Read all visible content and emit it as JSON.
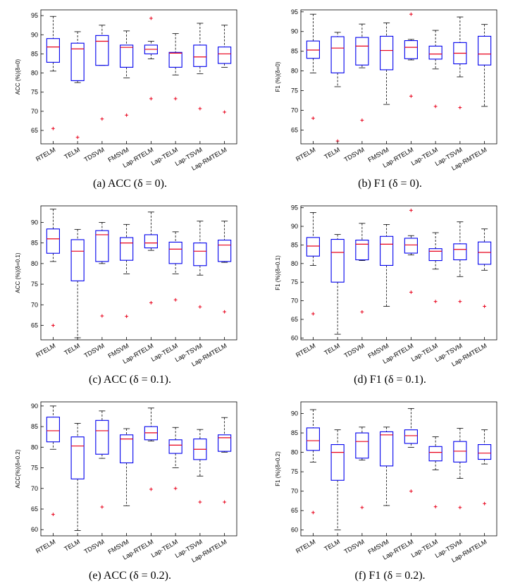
{
  "chart_data": [
    {
      "panel": "a",
      "caption": "(a) ACC (δ = 0).",
      "type": "box",
      "ylabel": "ACC (%)(δ=0)",
      "ylim": [
        61.5,
        96.5
      ],
      "yticks": [
        65,
        70,
        75,
        80,
        85,
        90,
        95
      ],
      "categories": [
        "RTELM",
        "TELM",
        "TDSVM",
        "FMSVM",
        "Lap-RTELM",
        "Lap-TELM",
        "Lap-TSVM",
        "Lap-RMTELM"
      ],
      "boxes": [
        {
          "min": 80.5,
          "q1": 82.8,
          "median": 86.8,
          "q3": 89.0,
          "max": 94.8,
          "outliers": [
            65.5
          ]
        },
        {
          "min": 77.5,
          "q1": 78.0,
          "median": 86.3,
          "q3": 87.8,
          "max": 90.8,
          "outliers": [
            63.2
          ]
        },
        {
          "min": 82.0,
          "q1": 82.0,
          "median": 88.3,
          "q3": 89.8,
          "max": 92.5,
          "outliers": [
            68.0
          ]
        },
        {
          "min": 78.7,
          "q1": 81.5,
          "median": 86.7,
          "q3": 87.3,
          "max": 91.0,
          "outliers": [
            69.0
          ]
        },
        {
          "min": 83.7,
          "q1": 85.0,
          "median": 86.2,
          "q3": 87.3,
          "max": 88.3,
          "outliers": [
            94.3,
            73.3
          ]
        },
        {
          "min": 79.5,
          "q1": 81.5,
          "median": 85.2,
          "q3": 85.4,
          "max": 90.3,
          "outliers": [
            73.3
          ]
        },
        {
          "min": 79.8,
          "q1": 81.7,
          "median": 84.2,
          "q3": 87.3,
          "max": 93.0,
          "outliers": [
            70.7
          ]
        },
        {
          "min": 81.5,
          "q1": 82.5,
          "median": 85.0,
          "q3": 86.8,
          "max": 92.5,
          "outliers": [
            69.8
          ]
        }
      ]
    },
    {
      "panel": "b",
      "caption": "(b) F1 (δ = 0).",
      "type": "box",
      "ylabel": "F1 (%)(δ=0)",
      "ylim": [
        61.5,
        95.5
      ],
      "yticks": [
        65,
        70,
        75,
        80,
        85,
        90,
        95
      ],
      "categories": [
        "RTELM",
        "TELM",
        "TDSVM",
        "FMSVM",
        "Lap-RTELM",
        "Lap-TELM",
        "Lap-TSVM",
        "Lap-RMTELM"
      ],
      "boxes": [
        {
          "min": 79.5,
          "q1": 83.2,
          "median": 85.3,
          "q3": 87.6,
          "max": 94.4,
          "outliers": [
            68.0
          ]
        },
        {
          "min": 76.0,
          "q1": 79.5,
          "median": 85.8,
          "q3": 88.7,
          "max": 89.8,
          "outliers": [
            62.2
          ]
        },
        {
          "min": 80.8,
          "q1": 81.5,
          "median": 86.3,
          "q3": 88.5,
          "max": 91.9,
          "outliers": [
            67.5
          ]
        },
        {
          "min": 71.5,
          "q1": 80.3,
          "median": 85.2,
          "q3": 88.8,
          "max": 92.2,
          "outliers": []
        },
        {
          "min": 82.8,
          "q1": 83.1,
          "median": 86.0,
          "q3": 87.7,
          "max": 88.0,
          "outliers": [
            94.4,
            73.6
          ]
        },
        {
          "min": 80.5,
          "q1": 83.0,
          "median": 84.3,
          "q3": 86.3,
          "max": 90.3,
          "outliers": [
            71.0
          ]
        },
        {
          "min": 78.5,
          "q1": 81.8,
          "median": 84.5,
          "q3": 87.2,
          "max": 93.7,
          "outliers": [
            70.7
          ]
        },
        {
          "min": 71.0,
          "q1": 81.5,
          "median": 84.3,
          "q3": 88.8,
          "max": 91.8,
          "outliers": []
        }
      ]
    },
    {
      "panel": "c",
      "caption": "(c) ACC (δ = 0.1).",
      "type": "box",
      "ylabel": "ACC (%)(δ=0.1)",
      "ylim": [
        61.5,
        94.0
      ],
      "yticks": [
        65,
        70,
        75,
        80,
        85,
        90
      ],
      "categories": [
        "RTELM",
        "TELM",
        "TDSVM",
        "FMSVM",
        "Lap-RTELM",
        "Lap-TELM",
        "Lap-TSVM",
        "Lap-RMTELM"
      ],
      "boxes": [
        {
          "min": 80.5,
          "q1": 82.5,
          "median": 86.0,
          "q3": 88.4,
          "max": 93.2,
          "outliers": [
            65.0
          ]
        },
        {
          "min": 62.0,
          "q1": 75.8,
          "median": 83.0,
          "q3": 85.8,
          "max": 88.3,
          "outliers": []
        },
        {
          "min": 80.0,
          "q1": 80.5,
          "median": 87.0,
          "q3": 88.0,
          "max": 90.0,
          "outliers": [
            67.3
          ]
        },
        {
          "min": 77.5,
          "q1": 80.8,
          "median": 85.0,
          "q3": 86.3,
          "max": 89.5,
          "outliers": [
            67.2
          ]
        },
        {
          "min": 83.2,
          "q1": 83.8,
          "median": 85.0,
          "q3": 87.0,
          "max": 92.5,
          "outliers": [
            70.5
          ]
        },
        {
          "min": 77.5,
          "q1": 80.0,
          "median": 83.5,
          "q3": 85.2,
          "max": 87.7,
          "outliers": [
            71.2
          ]
        },
        {
          "min": 77.2,
          "q1": 79.5,
          "median": 83.0,
          "q3": 85.0,
          "max": 90.3,
          "outliers": [
            69.5
          ]
        },
        {
          "min": 80.3,
          "q1": 80.5,
          "median": 84.5,
          "q3": 85.7,
          "max": 90.3,
          "outliers": [
            68.3
          ]
        }
      ]
    },
    {
      "panel": "d",
      "caption": "(d) F1 (δ = 0.1).",
      "type": "box",
      "ylabel": "F1 (%)(δ=0.1)",
      "ylim": [
        59.5,
        95.5
      ],
      "yticks": [
        60,
        65,
        70,
        75,
        80,
        85,
        90,
        95
      ],
      "categories": [
        "RTELM",
        "TELM",
        "TDSVM",
        "FMSVM",
        "Lap-RTELM",
        "Lap-TELM",
        "Lap-TSVM",
        "Lap-RMTELM"
      ],
      "boxes": [
        {
          "min": 79.5,
          "q1": 82.0,
          "median": 84.7,
          "q3": 87.0,
          "max": 93.7,
          "outliers": [
            66.5
          ]
        },
        {
          "min": 61.0,
          "q1": 75.0,
          "median": 83.0,
          "q3": 86.5,
          "max": 87.8,
          "outliers": []
        },
        {
          "min": 80.8,
          "q1": 81.0,
          "median": 85.2,
          "q3": 86.3,
          "max": 90.8,
          "outliers": [
            67.0
          ]
        },
        {
          "min": 68.5,
          "q1": 79.5,
          "median": 85.2,
          "q3": 87.3,
          "max": 90.5,
          "outliers": []
        },
        {
          "min": 82.3,
          "q1": 82.8,
          "median": 85.0,
          "q3": 86.8,
          "max": 87.5,
          "outliers": [
            94.3,
            72.3
          ]
        },
        {
          "min": 78.5,
          "q1": 80.8,
          "median": 83.3,
          "q3": 84.0,
          "max": 88.3,
          "outliers": [
            69.8
          ]
        },
        {
          "min": 76.5,
          "q1": 81.0,
          "median": 83.8,
          "q3": 85.3,
          "max": 91.2,
          "outliers": [
            69.8
          ]
        },
        {
          "min": 78.2,
          "q1": 79.8,
          "median": 83.0,
          "q3": 85.8,
          "max": 89.3,
          "outliers": [
            68.5
          ]
        }
      ]
    },
    {
      "panel": "e",
      "caption": "(e) ACC (δ = 0.2).",
      "type": "box",
      "ylabel": "ACC(%)(δ=0.2)",
      "ylim": [
        58.5,
        91.0
      ],
      "yticks": [
        60,
        65,
        70,
        75,
        80,
        85,
        90
      ],
      "categories": [
        "RTELM",
        "TELM",
        "TDSVM",
        "FMSVM",
        "Lap-RTELM",
        "Lap-TELM",
        "Lap-TSVM",
        "Lap-RMTELM"
      ],
      "boxes": [
        {
          "min": 79.5,
          "q1": 81.3,
          "median": 84.0,
          "q3": 87.3,
          "max": 90.0,
          "outliers": [
            63.7
          ]
        },
        {
          "min": 59.8,
          "q1": 72.3,
          "median": 80.3,
          "q3": 82.5,
          "max": 85.8,
          "outliers": []
        },
        {
          "min": 77.3,
          "q1": 78.3,
          "median": 84.0,
          "q3": 86.5,
          "max": 88.8,
          "outliers": [
            65.5
          ]
        },
        {
          "min": 65.8,
          "q1": 76.2,
          "median": 82.0,
          "q3": 83.0,
          "max": 84.5,
          "outliers": []
        },
        {
          "min": 81.5,
          "q1": 81.8,
          "median": 83.5,
          "q3": 85.0,
          "max": 89.5,
          "outliers": [
            69.8
          ]
        },
        {
          "min": 75.0,
          "q1": 78.5,
          "median": 80.5,
          "q3": 81.8,
          "max": 84.8,
          "outliers": [
            70.0
          ]
        },
        {
          "min": 73.0,
          "q1": 77.0,
          "median": 79.5,
          "q3": 82.0,
          "max": 84.3,
          "outliers": [
            66.7
          ]
        },
        {
          "min": 78.8,
          "q1": 79.0,
          "median": 82.3,
          "q3": 83.0,
          "max": 87.2,
          "outliers": [
            66.7
          ]
        }
      ]
    },
    {
      "panel": "f",
      "caption": "(f) F1 (δ = 0.2).",
      "type": "box",
      "ylabel": "F1 (%)(δ=0.2)",
      "ylim": [
        58.5,
        93.0
      ],
      "yticks": [
        60,
        65,
        70,
        75,
        80,
        85,
        90
      ],
      "categories": [
        "RTELM",
        "TELM",
        "TDSVM",
        "FMSVM",
        "Lap-RTELM",
        "Lap-TELM",
        "Lap-TSVM",
        "Lap-RMTELM"
      ],
      "boxes": [
        {
          "min": 77.5,
          "q1": 80.5,
          "median": 83.0,
          "q3": 86.3,
          "max": 91.0,
          "outliers": [
            64.5
          ]
        },
        {
          "min": 60.0,
          "q1": 72.8,
          "median": 80.0,
          "q3": 82.0,
          "max": 85.8,
          "outliers": []
        },
        {
          "min": 78.0,
          "q1": 78.5,
          "median": 82.8,
          "q3": 85.0,
          "max": 86.5,
          "outliers": [
            65.8
          ]
        },
        {
          "min": 66.3,
          "q1": 76.5,
          "median": 84.5,
          "q3": 85.3,
          "max": 86.5,
          "outliers": []
        },
        {
          "min": 81.3,
          "q1": 82.3,
          "median": 84.3,
          "q3": 85.8,
          "max": 91.3,
          "outliers": [
            70.0
          ]
        },
        {
          "min": 75.5,
          "q1": 77.8,
          "median": 80.0,
          "q3": 81.5,
          "max": 84.0,
          "outliers": [
            66.0
          ]
        },
        {
          "min": 73.3,
          "q1": 77.5,
          "median": 80.3,
          "q3": 82.8,
          "max": 86.2,
          "outliers": [
            65.8
          ]
        },
        {
          "min": 77.0,
          "q1": 78.2,
          "median": 79.8,
          "q3": 82.0,
          "max": 85.8,
          "outliers": [
            66.8
          ]
        }
      ]
    }
  ],
  "colors": {
    "box": "#0000ee",
    "median": "#e8001a",
    "outlier": "#e8001a",
    "whisker": "#000000",
    "axis": "#000000"
  }
}
